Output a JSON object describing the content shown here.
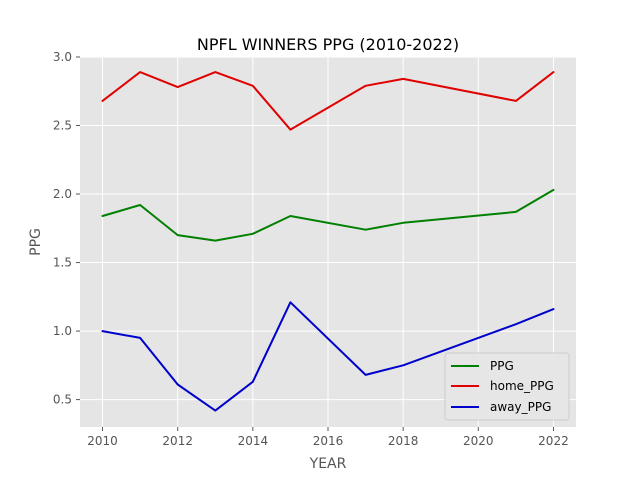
{
  "chart_data": {
    "type": "line",
    "title": "NPFL WINNERS PPG (2010-2022)",
    "xlabel": "YEAR",
    "ylabel": "PPG",
    "xlim": [
      2009.4,
      2022.6
    ],
    "ylim": [
      0.3,
      3.0
    ],
    "xticks": [
      "2010",
      "2012",
      "2014",
      "2016",
      "2018",
      "2020",
      "2022"
    ],
    "yticks": [
      "0.5",
      "1.0",
      "1.5",
      "2.0",
      "2.5",
      "3.0"
    ],
    "grid": true,
    "legend_position": "lower-right",
    "x": [
      2010,
      2011,
      2012,
      2013,
      2014,
      2015,
      2017,
      2018,
      2021,
      2022
    ],
    "series": [
      {
        "name": "PPG",
        "color": "#008000",
        "values": [
          1.84,
          1.92,
          1.7,
          1.66,
          1.71,
          1.84,
          1.74,
          1.79,
          1.87,
          2.03
        ]
      },
      {
        "name": "home_PPG",
        "color": "#e00000",
        "values": [
          2.68,
          2.89,
          2.78,
          2.89,
          2.79,
          2.47,
          2.79,
          2.84,
          2.68,
          2.89
        ]
      },
      {
        "name": "away_PPG",
        "color": "#0000cc",
        "values": [
          1.0,
          0.95,
          0.61,
          0.42,
          0.63,
          1.21,
          0.68,
          0.75,
          1.05,
          1.16
        ]
      }
    ]
  }
}
